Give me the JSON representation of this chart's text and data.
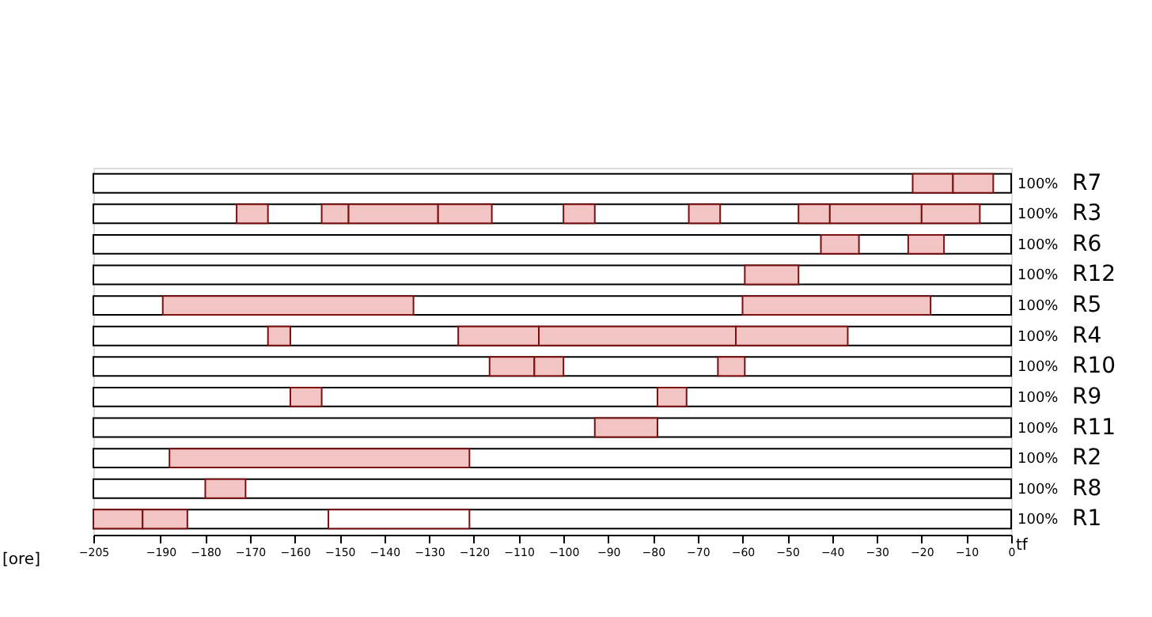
{
  "chart_data": {
    "type": "bar",
    "orientation": "horizontal",
    "xlabel": "[ore]",
    "categories": [
      "R7",
      "R3",
      "R6",
      "R12",
      "R5",
      "R4",
      "R10",
      "R9",
      "R11",
      "R2",
      "R8",
      "R1"
    ],
    "xlim": [
      -205,
      0
    ],
    "xticks": [
      -205,
      -190,
      -180,
      -170,
      -160,
      -150,
      -140,
      -130,
      -120,
      -110,
      -100,
      -90,
      -80,
      -70,
      -60,
      -50,
      -40,
      -30,
      -20,
      -10,
      0
    ],
    "series": [
      {
        "color": "#f2c4c4",
        "base": [
          -22,
          -173,
          -42.5,
          -59.5,
          -189.5,
          -166,
          -116.5,
          -161,
          -93,
          -188,
          -180,
          -205
        ],
        "values": [
          9,
          7,
          8.5,
          12,
          56,
          5,
          10,
          7,
          14,
          67,
          9,
          11
        ]
      },
      {
        "color": "#f2c4c4",
        "base": [
          -13,
          -154,
          -23,
          null,
          -60,
          -123.5,
          -106.5,
          -79,
          null,
          null,
          null,
          -194
        ],
        "values": [
          9,
          6,
          8,
          null,
          42,
          18,
          6.5,
          6.5,
          null,
          null,
          null,
          10
        ]
      },
      {
        "color": "#f2c4c4",
        "base": [
          null,
          -148,
          null,
          null,
          null,
          -105.5,
          -65.5,
          null,
          null,
          null,
          null,
          null
        ],
        "values": [
          null,
          20,
          null,
          null,
          null,
          44,
          6,
          null,
          null,
          null,
          null,
          null
        ]
      },
      {
        "color": "#f2c4c4",
        "base": [
          null,
          -128,
          null,
          null,
          null,
          -61.5,
          null,
          null,
          null,
          null,
          null,
          null
        ],
        "values": [
          null,
          12,
          null,
          null,
          null,
          25,
          null,
          null,
          null,
          null,
          null,
          null
        ]
      },
      {
        "color": "#f2c4c4",
        "base": [
          null,
          -100,
          null,
          null,
          null,
          null,
          null,
          null,
          null,
          null,
          null,
          null
        ],
        "values": [
          null,
          7,
          null,
          null,
          null,
          null,
          null,
          null,
          null,
          null,
          null,
          null
        ]
      },
      {
        "color": "#f2c4c4",
        "base": [
          null,
          -72,
          null,
          null,
          null,
          null,
          null,
          null,
          null,
          null,
          null,
          null
        ],
        "values": [
          null,
          7,
          null,
          null,
          null,
          null,
          null,
          null,
          null,
          null,
          null,
          null
        ]
      },
      {
        "color": "#f2c4c4",
        "base": [
          null,
          -47.5,
          null,
          null,
          null,
          null,
          null,
          null,
          null,
          null,
          null,
          null
        ],
        "values": [
          null,
          7,
          null,
          null,
          null,
          null,
          null,
          null,
          null,
          null,
          null,
          null
        ]
      },
      {
        "color": "#f2c4c4",
        "base": [
          null,
          -40.5,
          null,
          null,
          null,
          null,
          null,
          null,
          null,
          null,
          null,
          null
        ],
        "values": [
          null,
          20.5,
          null,
          null,
          null,
          null,
          null,
          null,
          null,
          null,
          null,
          null
        ]
      },
      {
        "color": "#f2c4c4",
        "base": [
          null,
          -20,
          null,
          null,
          null,
          null,
          null,
          null,
          null,
          null,
          null,
          null
        ],
        "values": [
          null,
          13,
          null,
          null,
          null,
          null,
          null,
          null,
          null,
          null,
          null,
          null
        ]
      },
      {
        "color": "#ffffff",
        "base": [
          null,
          null,
          null,
          null,
          null,
          null,
          null,
          null,
          null,
          null,
          null,
          -152.5
        ],
        "values": [
          null,
          null,
          null,
          null,
          null,
          null,
          null,
          null,
          null,
          null,
          null,
          31.5
        ]
      }
    ],
    "annotations": [
      "100%",
      "100%",
      "100%",
      "100%",
      "100%",
      "100%",
      "100%",
      "100%",
      "100%",
      "100%",
      "100%",
      "100%",
      "tf"
    ]
  }
}
